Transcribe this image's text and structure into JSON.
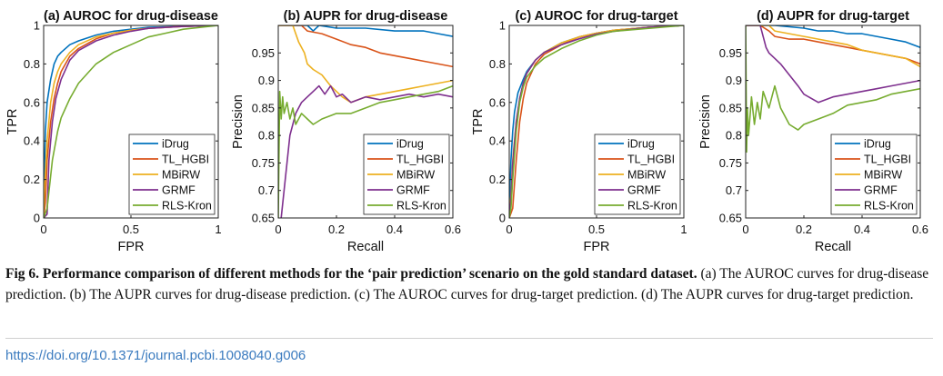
{
  "chart_data": [
    {
      "type": "line",
      "title": "(a) AUROC for drug-disease",
      "xlabel": "FPR",
      "ylabel": "TPR",
      "xlim": [
        0,
        1
      ],
      "ylim": [
        0,
        1
      ],
      "xticks": [
        "0",
        "0.5",
        "1"
      ],
      "yticks": [
        "0",
        "0.2",
        "0.4",
        "0.6",
        "0.8",
        "1"
      ],
      "legend_position": "bottom-right",
      "series": [
        {
          "name": "iDrug",
          "color": "#0072bd",
          "x": [
            0,
            0.005,
            0.01,
            0.02,
            0.04,
            0.06,
            0.08,
            0.1,
            0.15,
            0.2,
            0.3,
            0.4,
            0.5,
            0.6,
            0.8,
            1.0
          ],
          "y": [
            0,
            0.28,
            0.45,
            0.6,
            0.72,
            0.8,
            0.84,
            0.86,
            0.9,
            0.92,
            0.95,
            0.97,
            0.98,
            0.99,
            0.995,
            1.0
          ]
        },
        {
          "name": "TL_HGBI",
          "color": "#d95319",
          "x": [
            0,
            0.01,
            0.02,
            0.04,
            0.06,
            0.08,
            0.1,
            0.15,
            0.2,
            0.3,
            0.4,
            0.5,
            0.6,
            0.8,
            1.0
          ],
          "y": [
            0,
            0.08,
            0.3,
            0.5,
            0.62,
            0.7,
            0.76,
            0.84,
            0.88,
            0.93,
            0.96,
            0.975,
            0.985,
            0.995,
            1.0
          ]
        },
        {
          "name": "MBiRW",
          "color": "#edb120",
          "x": [
            0,
            0.005,
            0.02,
            0.04,
            0.06,
            0.08,
            0.1,
            0.15,
            0.2,
            0.3,
            0.4,
            0.5,
            0.6,
            0.8,
            1.0
          ],
          "y": [
            0,
            0.15,
            0.4,
            0.6,
            0.7,
            0.76,
            0.8,
            0.86,
            0.9,
            0.94,
            0.96,
            0.975,
            0.985,
            0.995,
            1.0
          ]
        },
        {
          "name": "GRMF",
          "color": "#7e2f8e",
          "x": [
            0,
            0.02,
            0.03,
            0.05,
            0.07,
            0.1,
            0.15,
            0.2,
            0.3,
            0.4,
            0.5,
            0.6,
            0.8,
            1.0
          ],
          "y": [
            0,
            0.02,
            0.3,
            0.5,
            0.62,
            0.72,
            0.82,
            0.87,
            0.92,
            0.95,
            0.97,
            0.985,
            0.995,
            1.0
          ]
        },
        {
          "name": "RLS-Kron",
          "color": "#77ac30",
          "x": [
            0,
            0.02,
            0.05,
            0.08,
            0.1,
            0.15,
            0.2,
            0.3,
            0.4,
            0.5,
            0.6,
            0.7,
            0.8,
            0.9,
            1.0
          ],
          "y": [
            0,
            0.05,
            0.3,
            0.45,
            0.52,
            0.62,
            0.7,
            0.8,
            0.86,
            0.9,
            0.94,
            0.96,
            0.98,
            0.99,
            1.0
          ]
        }
      ]
    },
    {
      "type": "line",
      "title": "(b) AUPR for drug-disease",
      "xlabel": "Recall",
      "ylabel": "Precision",
      "xlim": [
        0,
        0.6
      ],
      "ylim": [
        0.65,
        1
      ],
      "xticks": [
        "0",
        "0.2",
        "0.4",
        "0.6"
      ],
      "yticks": [
        "0.65",
        "0.7",
        "0.75",
        "0.8",
        "0.85",
        "0.9",
        "0.95"
      ],
      "legend_position": "bottom-right",
      "series": [
        {
          "name": "iDrug",
          "color": "#0072bd",
          "x": [
            0,
            0.1,
            0.12,
            0.14,
            0.2,
            0.3,
            0.4,
            0.5,
            0.55,
            0.6
          ],
          "y": [
            1.0,
            1.0,
            0.99,
            1.0,
            0.995,
            0.995,
            0.99,
            0.99,
            0.985,
            0.98
          ]
        },
        {
          "name": "TL_HGBI",
          "color": "#d95319",
          "x": [
            0,
            0.08,
            0.1,
            0.15,
            0.2,
            0.25,
            0.3,
            0.35,
            0.4,
            0.45,
            0.5,
            0.55,
            0.6
          ],
          "y": [
            1.0,
            1.0,
            0.99,
            0.985,
            0.975,
            0.965,
            0.96,
            0.95,
            0.945,
            0.94,
            0.935,
            0.93,
            0.925
          ]
        },
        {
          "name": "MBiRW",
          "color": "#edb120",
          "x": [
            0,
            0.05,
            0.07,
            0.09,
            0.1,
            0.12,
            0.15,
            0.18,
            0.2,
            0.22,
            0.25,
            0.3,
            0.35,
            0.4,
            0.45,
            0.5,
            0.55,
            0.6
          ],
          "y": [
            1.0,
            1.0,
            0.97,
            0.95,
            0.93,
            0.92,
            0.91,
            0.89,
            0.88,
            0.87,
            0.86,
            0.87,
            0.875,
            0.88,
            0.885,
            0.89,
            0.895,
            0.9
          ]
        },
        {
          "name": "GRMF",
          "color": "#7e2f8e",
          "x": [
            0.01,
            0.02,
            0.03,
            0.04,
            0.05,
            0.06,
            0.08,
            0.1,
            0.12,
            0.14,
            0.16,
            0.18,
            0.2,
            0.22,
            0.25,
            0.3,
            0.35,
            0.4,
            0.45,
            0.5,
            0.55,
            0.6
          ],
          "y": [
            0.65,
            0.7,
            0.75,
            0.8,
            0.82,
            0.84,
            0.86,
            0.87,
            0.88,
            0.89,
            0.875,
            0.89,
            0.87,
            0.875,
            0.86,
            0.87,
            0.865,
            0.87,
            0.875,
            0.87,
            0.875,
            0.87
          ]
        },
        {
          "name": "RLS-Kron",
          "color": "#77ac30",
          "x": [
            0,
            0.005,
            0.01,
            0.015,
            0.02,
            0.03,
            0.04,
            0.05,
            0.06,
            0.08,
            0.1,
            0.12,
            0.15,
            0.2,
            0.25,
            0.3,
            0.35,
            0.4,
            0.45,
            0.5,
            0.55,
            0.6
          ],
          "y": [
            0.65,
            0.88,
            0.83,
            0.87,
            0.84,
            0.86,
            0.83,
            0.85,
            0.82,
            0.84,
            0.83,
            0.82,
            0.83,
            0.84,
            0.84,
            0.85,
            0.86,
            0.865,
            0.87,
            0.875,
            0.88,
            0.89
          ]
        }
      ]
    },
    {
      "type": "line",
      "title": "(c) AUROC for drug-target",
      "xlabel": "FPR",
      "ylabel": "TPR",
      "xlim": [
        0,
        1
      ],
      "ylim": [
        0,
        1
      ],
      "xticks": [
        "0",
        "0.5",
        "1"
      ],
      "yticks": [
        "0",
        "0.2",
        "0.4",
        "0.6",
        "0.8",
        "1"
      ],
      "legend_position": "bottom-right",
      "series": [
        {
          "name": "iDrug",
          "color": "#0072bd",
          "x": [
            0,
            0.005,
            0.01,
            0.02,
            0.03,
            0.05,
            0.08,
            0.1,
            0.15,
            0.2,
            0.3,
            0.4,
            0.5,
            0.6,
            0.8,
            1.0
          ],
          "y": [
            0,
            0.18,
            0.3,
            0.45,
            0.55,
            0.65,
            0.72,
            0.76,
            0.82,
            0.86,
            0.91,
            0.94,
            0.96,
            0.975,
            0.99,
            1.0
          ]
        },
        {
          "name": "TL_HGBI",
          "color": "#d95319",
          "x": [
            0,
            0.02,
            0.04,
            0.06,
            0.08,
            0.1,
            0.15,
            0.2,
            0.3,
            0.4,
            0.5,
            0.6,
            0.8,
            1.0
          ],
          "y": [
            0,
            0.05,
            0.3,
            0.5,
            0.62,
            0.7,
            0.8,
            0.85,
            0.9,
            0.94,
            0.96,
            0.975,
            0.99,
            1.0
          ]
        },
        {
          "name": "MBiRW",
          "color": "#edb120",
          "x": [
            0,
            0.01,
            0.02,
            0.04,
            0.06,
            0.08,
            0.1,
            0.15,
            0.2,
            0.3,
            0.4,
            0.5,
            0.6,
            0.8,
            1.0
          ],
          "y": [
            0,
            0.12,
            0.3,
            0.5,
            0.62,
            0.7,
            0.75,
            0.82,
            0.86,
            0.91,
            0.94,
            0.96,
            0.975,
            0.99,
            1.0
          ]
        },
        {
          "name": "GRMF",
          "color": "#7e2f8e",
          "x": [
            0,
            0.01,
            0.02,
            0.04,
            0.06,
            0.08,
            0.1,
            0.15,
            0.2,
            0.3,
            0.4,
            0.5,
            0.6,
            0.8,
            1.0
          ],
          "y": [
            0,
            0.1,
            0.28,
            0.5,
            0.62,
            0.7,
            0.75,
            0.82,
            0.86,
            0.9,
            0.93,
            0.955,
            0.97,
            0.99,
            1.0
          ]
        },
        {
          "name": "RLS-Kron",
          "color": "#77ac30",
          "x": [
            0,
            0.01,
            0.02,
            0.04,
            0.06,
            0.08,
            0.1,
            0.15,
            0.2,
            0.3,
            0.4,
            0.5,
            0.6,
            0.8,
            1.0
          ],
          "y": [
            0,
            0.05,
            0.2,
            0.45,
            0.6,
            0.68,
            0.73,
            0.79,
            0.83,
            0.88,
            0.92,
            0.95,
            0.97,
            0.985,
            1.0
          ]
        }
      ]
    },
    {
      "type": "line",
      "title": "(d) AUPR for  drug-target",
      "xlabel": "Recall",
      "ylabel": "Precision",
      "xlim": [
        0,
        0.6
      ],
      "ylim": [
        0.65,
        1
      ],
      "xticks": [
        "0",
        "0.2",
        "0.4",
        "0.6"
      ],
      "yticks": [
        "0.65",
        "0.7",
        "0.75",
        "0.8",
        "0.85",
        "0.9",
        "0.95"
      ],
      "legend_position": "bottom-right",
      "series": [
        {
          "name": "iDrug",
          "color": "#0072bd",
          "x": [
            0,
            0.1,
            0.2,
            0.25,
            0.3,
            0.35,
            0.4,
            0.45,
            0.5,
            0.55,
            0.6
          ],
          "y": [
            1.0,
            1.0,
            0.995,
            0.99,
            0.99,
            0.985,
            0.985,
            0.98,
            0.975,
            0.97,
            0.96
          ]
        },
        {
          "name": "TL_HGBI",
          "color": "#d95319",
          "x": [
            0,
            0.05,
            0.08,
            0.1,
            0.15,
            0.2,
            0.25,
            0.3,
            0.35,
            0.4,
            0.45,
            0.5,
            0.55,
            0.6
          ],
          "y": [
            1.0,
            1.0,
            0.99,
            0.98,
            0.975,
            0.975,
            0.97,
            0.965,
            0.96,
            0.955,
            0.95,
            0.945,
            0.94,
            0.93
          ]
        },
        {
          "name": "MBiRW",
          "color": "#edb120",
          "x": [
            0,
            0.08,
            0.1,
            0.15,
            0.2,
            0.25,
            0.3,
            0.35,
            0.4,
            0.45,
            0.5,
            0.55,
            0.6
          ],
          "y": [
            1.0,
            1.0,
            0.99,
            0.985,
            0.98,
            0.975,
            0.97,
            0.965,
            0.955,
            0.95,
            0.945,
            0.94,
            0.925
          ]
        },
        {
          "name": "GRMF",
          "color": "#7e2f8e",
          "x": [
            0,
            0.05,
            0.06,
            0.07,
            0.08,
            0.1,
            0.12,
            0.15,
            0.18,
            0.2,
            0.25,
            0.3,
            0.35,
            0.4,
            0.45,
            0.5,
            0.55,
            0.6
          ],
          "y": [
            1.0,
            1.0,
            0.98,
            0.96,
            0.95,
            0.94,
            0.93,
            0.91,
            0.89,
            0.875,
            0.86,
            0.87,
            0.875,
            0.88,
            0.885,
            0.89,
            0.895,
            0.9
          ]
        },
        {
          "name": "RLS-Kron",
          "color": "#77ac30",
          "x": [
            0,
            0.003,
            0.006,
            0.01,
            0.02,
            0.03,
            0.04,
            0.05,
            0.06,
            0.08,
            0.1,
            0.12,
            0.15,
            0.18,
            0.2,
            0.25,
            0.3,
            0.35,
            0.4,
            0.45,
            0.5,
            0.55,
            0.6
          ],
          "y": [
            1.0,
            0.77,
            0.85,
            0.8,
            0.87,
            0.82,
            0.86,
            0.83,
            0.88,
            0.85,
            0.89,
            0.85,
            0.82,
            0.81,
            0.82,
            0.83,
            0.84,
            0.855,
            0.86,
            0.865,
            0.875,
            0.88,
            0.885
          ]
        }
      ]
    }
  ],
  "caption": {
    "fig_label": "Fig 6. ",
    "bold_text": "Performance comparison of different methods for the ‘pair prediction’ scenario on the gold standard dataset.",
    "body_text": " (a) The AUROC curves for drug-disease prediction. (b) The AUPR curves for drug-disease prediction. (c) The AUROC curves for drug-target prediction. (d) The AUPR curves for drug-target prediction."
  },
  "doi": "https://doi.org/10.1371/journal.pcbi.1008040.g006"
}
